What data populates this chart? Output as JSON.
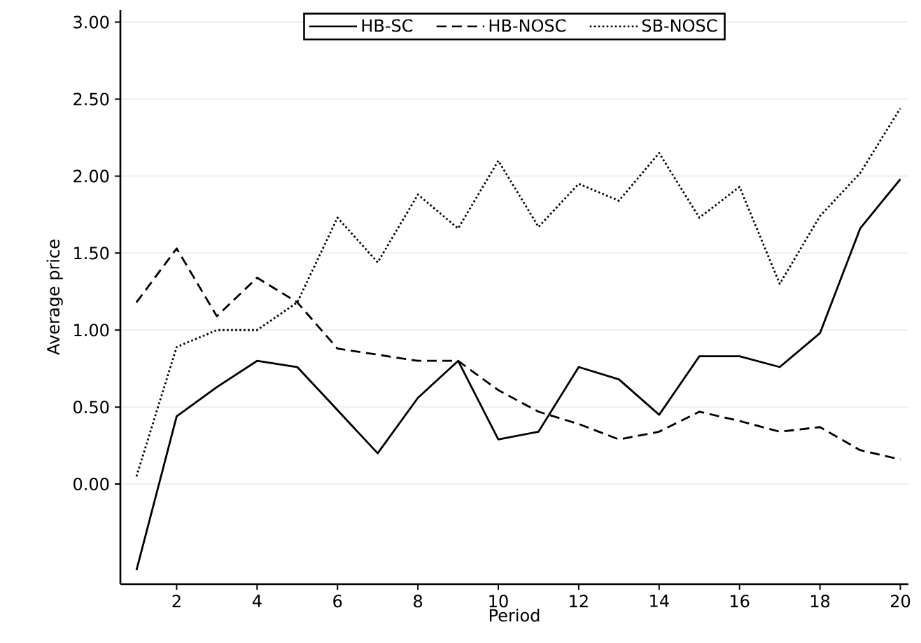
{
  "chart_data": {
    "type": "line",
    "xlabel": "Period",
    "ylabel": "Average price",
    "x": [
      1,
      2,
      3,
      4,
      5,
      6,
      7,
      8,
      9,
      10,
      11,
      12,
      13,
      14,
      15,
      16,
      17,
      18,
      19,
      20
    ],
    "series": [
      {
        "name": "HB-SC",
        "color": "#000000",
        "line_style": "solid",
        "values": [
          -0.56,
          0.44,
          0.63,
          0.8,
          0.76,
          0.48,
          0.2,
          0.56,
          0.8,
          0.29,
          0.34,
          0.76,
          0.68,
          0.45,
          0.83,
          0.83,
          0.76,
          0.98,
          1.66,
          1.98
        ]
      },
      {
        "name": "HB-NOSC",
        "color": "#000000",
        "line_style": "dashed",
        "values": [
          1.18,
          1.53,
          1.09,
          1.34,
          1.18,
          0.88,
          0.84,
          0.8,
          0.8,
          0.61,
          0.47,
          0.39,
          0.29,
          0.34,
          0.47,
          0.41,
          0.34,
          0.37,
          0.22,
          0.16
        ]
      },
      {
        "name": "SB-NOSC",
        "color": "#000000",
        "line_style": "dotted",
        "values": [
          0.05,
          0.89,
          1.0,
          1.0,
          1.18,
          1.73,
          1.44,
          1.88,
          1.66,
          2.1,
          1.67,
          1.95,
          1.84,
          2.15,
          1.73,
          1.93,
          1.3,
          1.74,
          2.02,
          2.44
        ]
      }
    ],
    "xlim": [
      0.6,
      20.2
    ],
    "ylim": [
      -0.65,
      3.08
    ],
    "xticks": [
      2,
      4,
      6,
      8,
      10,
      12,
      14,
      16,
      18,
      20
    ],
    "yticks": [
      {
        "value": 0,
        "label": "0.00"
      },
      {
        "value": 0.5,
        "label": "0.50"
      },
      {
        "value": 1,
        "label": "1.00"
      },
      {
        "value": 1.5,
        "label": "1.50"
      },
      {
        "value": 2,
        "label": "2.00"
      },
      {
        "value": 2.5,
        "label": "2.50"
      },
      {
        "value": 3,
        "label": "3.00"
      }
    ],
    "grid": "y",
    "legend": "top",
    "marker": "none"
  }
}
